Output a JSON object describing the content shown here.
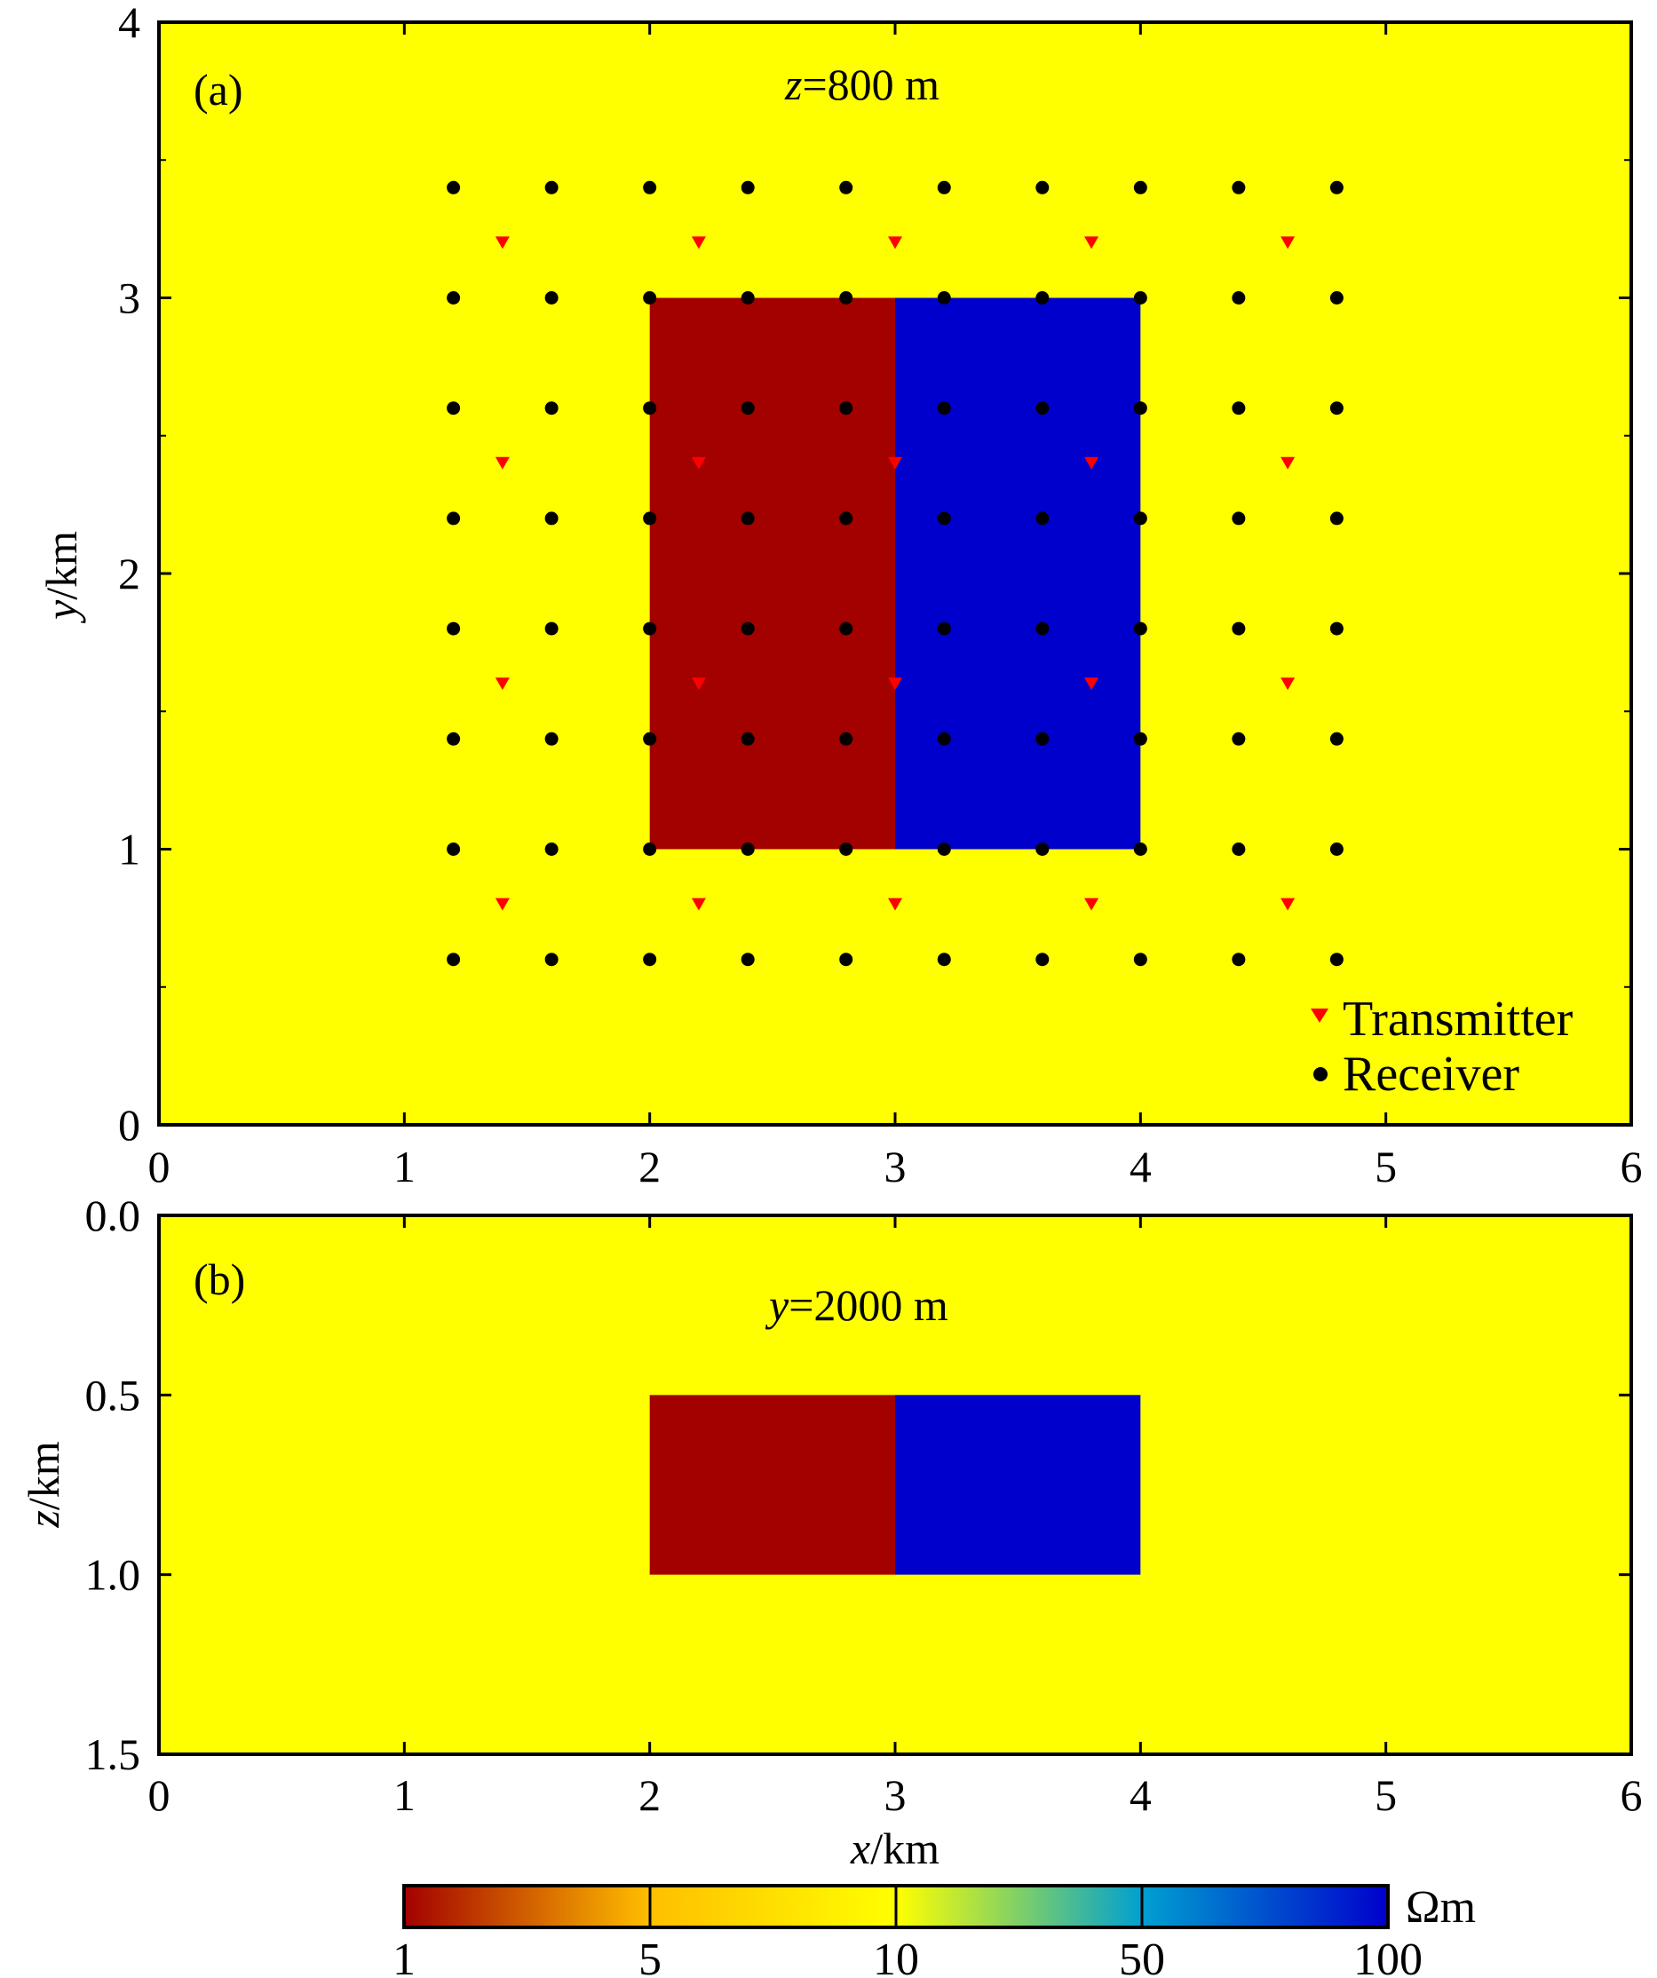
{
  "chart_data": [
    {
      "type": "heatmap",
      "panel_label": "(a)",
      "subtitle_var": "z",
      "subtitle_rest": "=800 m",
      "xlim": [
        0,
        6
      ],
      "ylim": [
        0,
        4
      ],
      "xticks": [
        "0",
        "1",
        "2",
        "3",
        "4",
        "5",
        "6"
      ],
      "yticks": [
        "0",
        "1",
        "2",
        "3",
        "4"
      ],
      "ylabel_var": "y",
      "ylabel_unit": "/km",
      "background_color": "#ffff00",
      "blocks": [
        {
          "x": [
            2,
            3
          ],
          "y": [
            1,
            3
          ],
          "color": "#a30000",
          "resistivity": 1
        },
        {
          "x": [
            3,
            4
          ],
          "y": [
            1,
            3
          ],
          "color": "#0000cc",
          "resistivity": 100
        }
      ],
      "receivers": {
        "name": "Receiver",
        "color": "#000000",
        "x": [
          1.2,
          1.6,
          2.0,
          2.4,
          2.8,
          3.2,
          3.6,
          4.0,
          4.4,
          4.8
        ],
        "y": [
          0.6,
          1.0,
          1.4,
          1.8,
          2.2,
          2.6,
          3.0,
          3.4
        ]
      },
      "transmitters": {
        "name": "Transmitter",
        "color": "#ff0000",
        "x": [
          1.4,
          2.2,
          3.0,
          3.8,
          4.6
        ],
        "y": [
          0.8,
          1.6,
          2.4,
          3.2
        ]
      },
      "legend_position": "bottom-right"
    },
    {
      "type": "heatmap",
      "panel_label": "(b)",
      "subtitle_var": "y",
      "subtitle_rest": "=2000 m",
      "xlim": [
        0,
        6
      ],
      "ylim": [
        1.5,
        0.0
      ],
      "xticks": [
        "0",
        "1",
        "2",
        "3",
        "4",
        "5",
        "6"
      ],
      "yticks": [
        "0.0",
        "0.5",
        "1.0",
        "1.5"
      ],
      "ylabel_var": "z",
      "ylabel_unit": "/km",
      "xlabel_var": "x",
      "xlabel_unit": "/km",
      "background_color": "#ffff00",
      "blocks": [
        {
          "x": [
            2,
            3
          ],
          "z": [
            0.5,
            1.0
          ],
          "color": "#a30000",
          "resistivity": 1
        },
        {
          "x": [
            3,
            4
          ],
          "z": [
            0.5,
            1.0
          ],
          "color": "#0000cc",
          "resistivity": 100
        }
      ]
    }
  ],
  "colorbar": {
    "unit": "Ωm",
    "ticks": [
      "1",
      "5",
      "10",
      "50",
      "100"
    ],
    "stops": [
      "#a30000",
      "#ffbf00",
      "#ffff00",
      "#00a0d0",
      "#0000cc"
    ]
  }
}
